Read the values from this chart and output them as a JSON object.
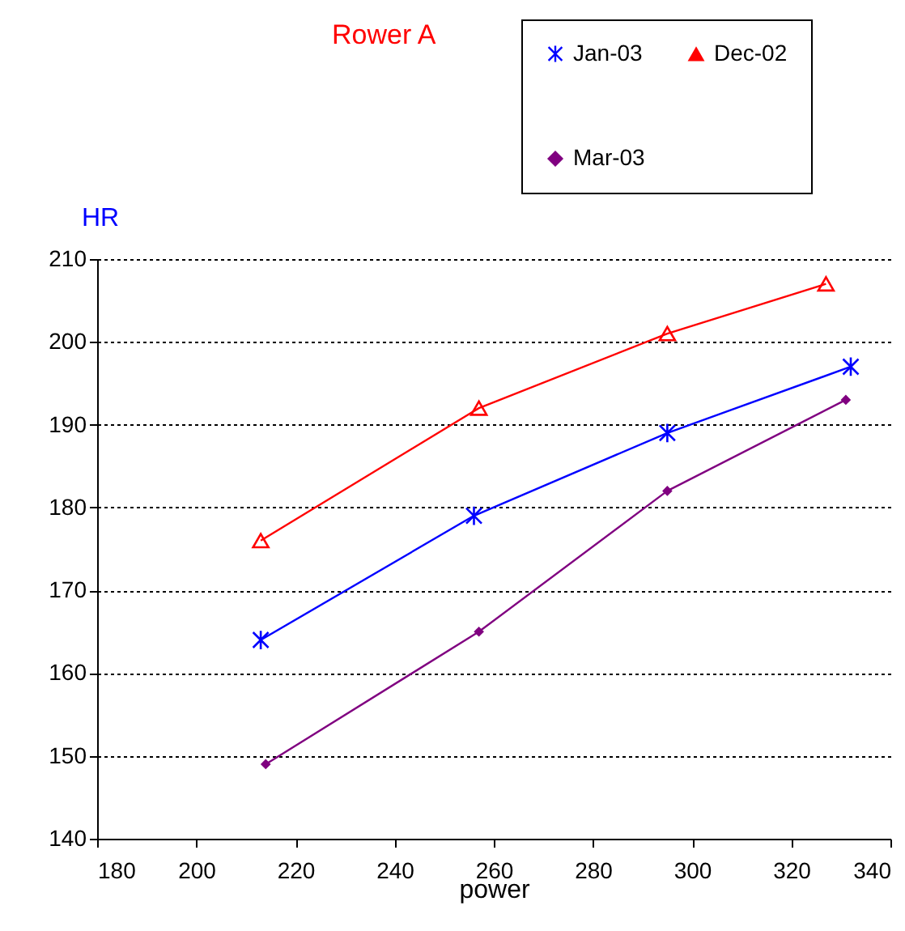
{
  "chart_data": {
    "type": "line",
    "title": "Rower A",
    "xlabel": "power",
    "ylabel": "HR",
    "xlim": [
      180,
      340
    ],
    "xticks": [
      180,
      200,
      220,
      240,
      260,
      280,
      300,
      320,
      340
    ],
    "ylim": [
      140,
      210
    ],
    "yticks": [
      140,
      150,
      160,
      170,
      180,
      190,
      200,
      210
    ],
    "grid": "y",
    "legend": "top right",
    "line_style": "solid",
    "series": [
      {
        "name": "Jan-03",
        "color": "#0000ff",
        "marker": "cross",
        "x": [
          213,
          256,
          295,
          332
        ],
        "values": [
          164,
          179,
          189,
          197
        ]
      },
      {
        "name": "Dec-02",
        "color": "#ff0000",
        "marker": "triangle",
        "x": [
          213,
          257,
          295,
          327
        ],
        "values": [
          176,
          192,
          201,
          207
        ]
      },
      {
        "name": "Mar-03",
        "color": "#800080",
        "marker": "diamond",
        "x": [
          214,
          257,
          295,
          331
        ],
        "values": [
          149,
          165,
          182,
          193
        ]
      }
    ]
  }
}
